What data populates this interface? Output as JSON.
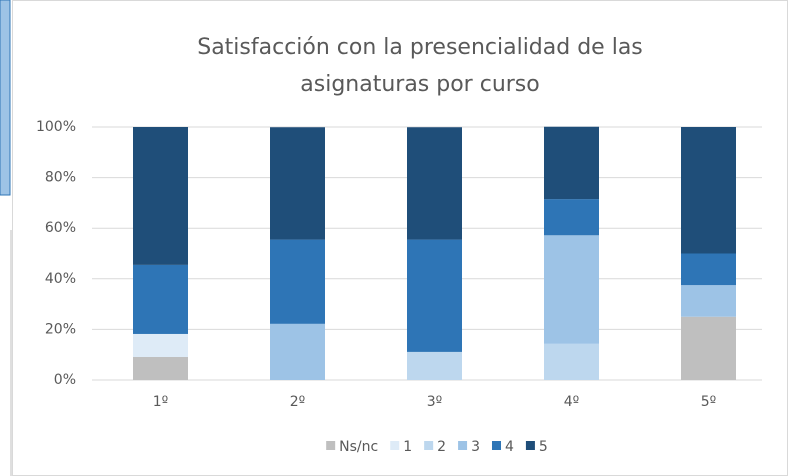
{
  "chart_data": {
    "type": "stacked_bar",
    "title": [
      "Satisfacción con la presencialidad de las",
      "asignaturas por curso"
    ],
    "categories": [
      "1º",
      "2º",
      "3º",
      "4º",
      "5º"
    ],
    "series": [
      {
        "name": "Ns/nc",
        "color": "#bfbfbf",
        "values": [
          9.1,
          0,
          0,
          0,
          25
        ]
      },
      {
        "name": "1",
        "color": "#deebf7",
        "values": [
          9.1,
          0,
          0,
          0,
          0
        ]
      },
      {
        "name": "2",
        "color": "#bdd7ee",
        "values": [
          0,
          0,
          11.1,
          14.3,
          0
        ]
      },
      {
        "name": "3",
        "color": "#9dc3e6",
        "values": [
          0,
          22.2,
          0,
          42.9,
          12.5
        ]
      },
      {
        "name": "4",
        "color": "#2e75b6",
        "values": [
          27.3,
          33.3,
          44.4,
          14.3,
          12.5
        ]
      },
      {
        "name": "5",
        "color": "#1f4e79",
        "values": [
          54.5,
          44.4,
          44.4,
          28.6,
          50
        ]
      }
    ],
    "ylim": [
      0,
      100
    ],
    "yticks": [
      {
        "value": 0,
        "label": "0%"
      },
      {
        "value": 20,
        "label": "20%"
      },
      {
        "value": 40,
        "label": "40%"
      },
      {
        "value": 60,
        "label": "60%"
      },
      {
        "value": 80,
        "label": "80%"
      },
      {
        "value": 100,
        "label": "100%"
      }
    ],
    "grid": true,
    "legend": "bottom"
  }
}
